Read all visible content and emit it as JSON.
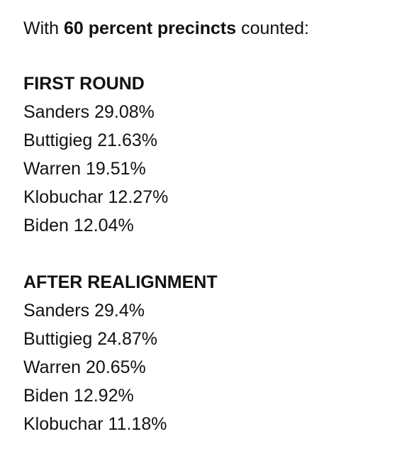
{
  "intro": {
    "before": "With",
    "bold": "60 percent precincts",
    "after": "counted:"
  },
  "sections": [
    {
      "heading": "FIRST ROUND",
      "rows": [
        {
          "name": "Sanders",
          "pct": "29.08%"
        },
        {
          "name": "Buttigieg",
          "pct": "21.63%"
        },
        {
          "name": "Warren",
          "pct": "19.51%"
        },
        {
          "name": "Klobuchar",
          "pct": "12.27%"
        },
        {
          "name": "Biden",
          "pct": "12.04%"
        }
      ]
    },
    {
      "heading": "AFTER REALIGNMENT",
      "rows": [
        {
          "name": "Sanders",
          "pct": "29.4%"
        },
        {
          "name": "Buttigieg",
          "pct": "24.87%"
        },
        {
          "name": "Warren",
          "pct": "20.65%"
        },
        {
          "name": "Biden",
          "pct": "12.92%"
        },
        {
          "name": "Klobuchar",
          "pct": "11.18%"
        }
      ]
    }
  ]
}
